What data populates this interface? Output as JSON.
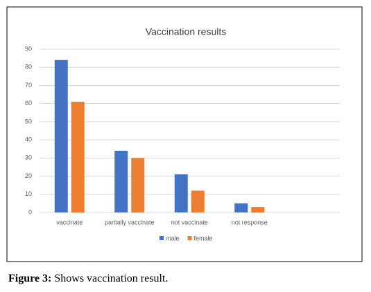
{
  "chart_data": {
    "type": "bar",
    "title": "Vaccination results",
    "categories": [
      "vaccinate",
      "partially vaccinate",
      "not vaccinate",
      "not response"
    ],
    "series": [
      {
        "name": "male",
        "color": "#4472c4",
        "values": [
          84,
          34,
          21,
          5
        ]
      },
      {
        "name": "female",
        "color": "#ed7d31",
        "values": [
          61,
          30,
          12,
          3
        ]
      }
    ],
    "ylim": [
      0,
      90
    ],
    "yticks": [
      0,
      10,
      20,
      30,
      40,
      50,
      60,
      70,
      80,
      90
    ],
    "grid": true,
    "legend": "bottom"
  },
  "caption": {
    "label": "Figure 3:",
    "text": "Shows vaccination result."
  }
}
